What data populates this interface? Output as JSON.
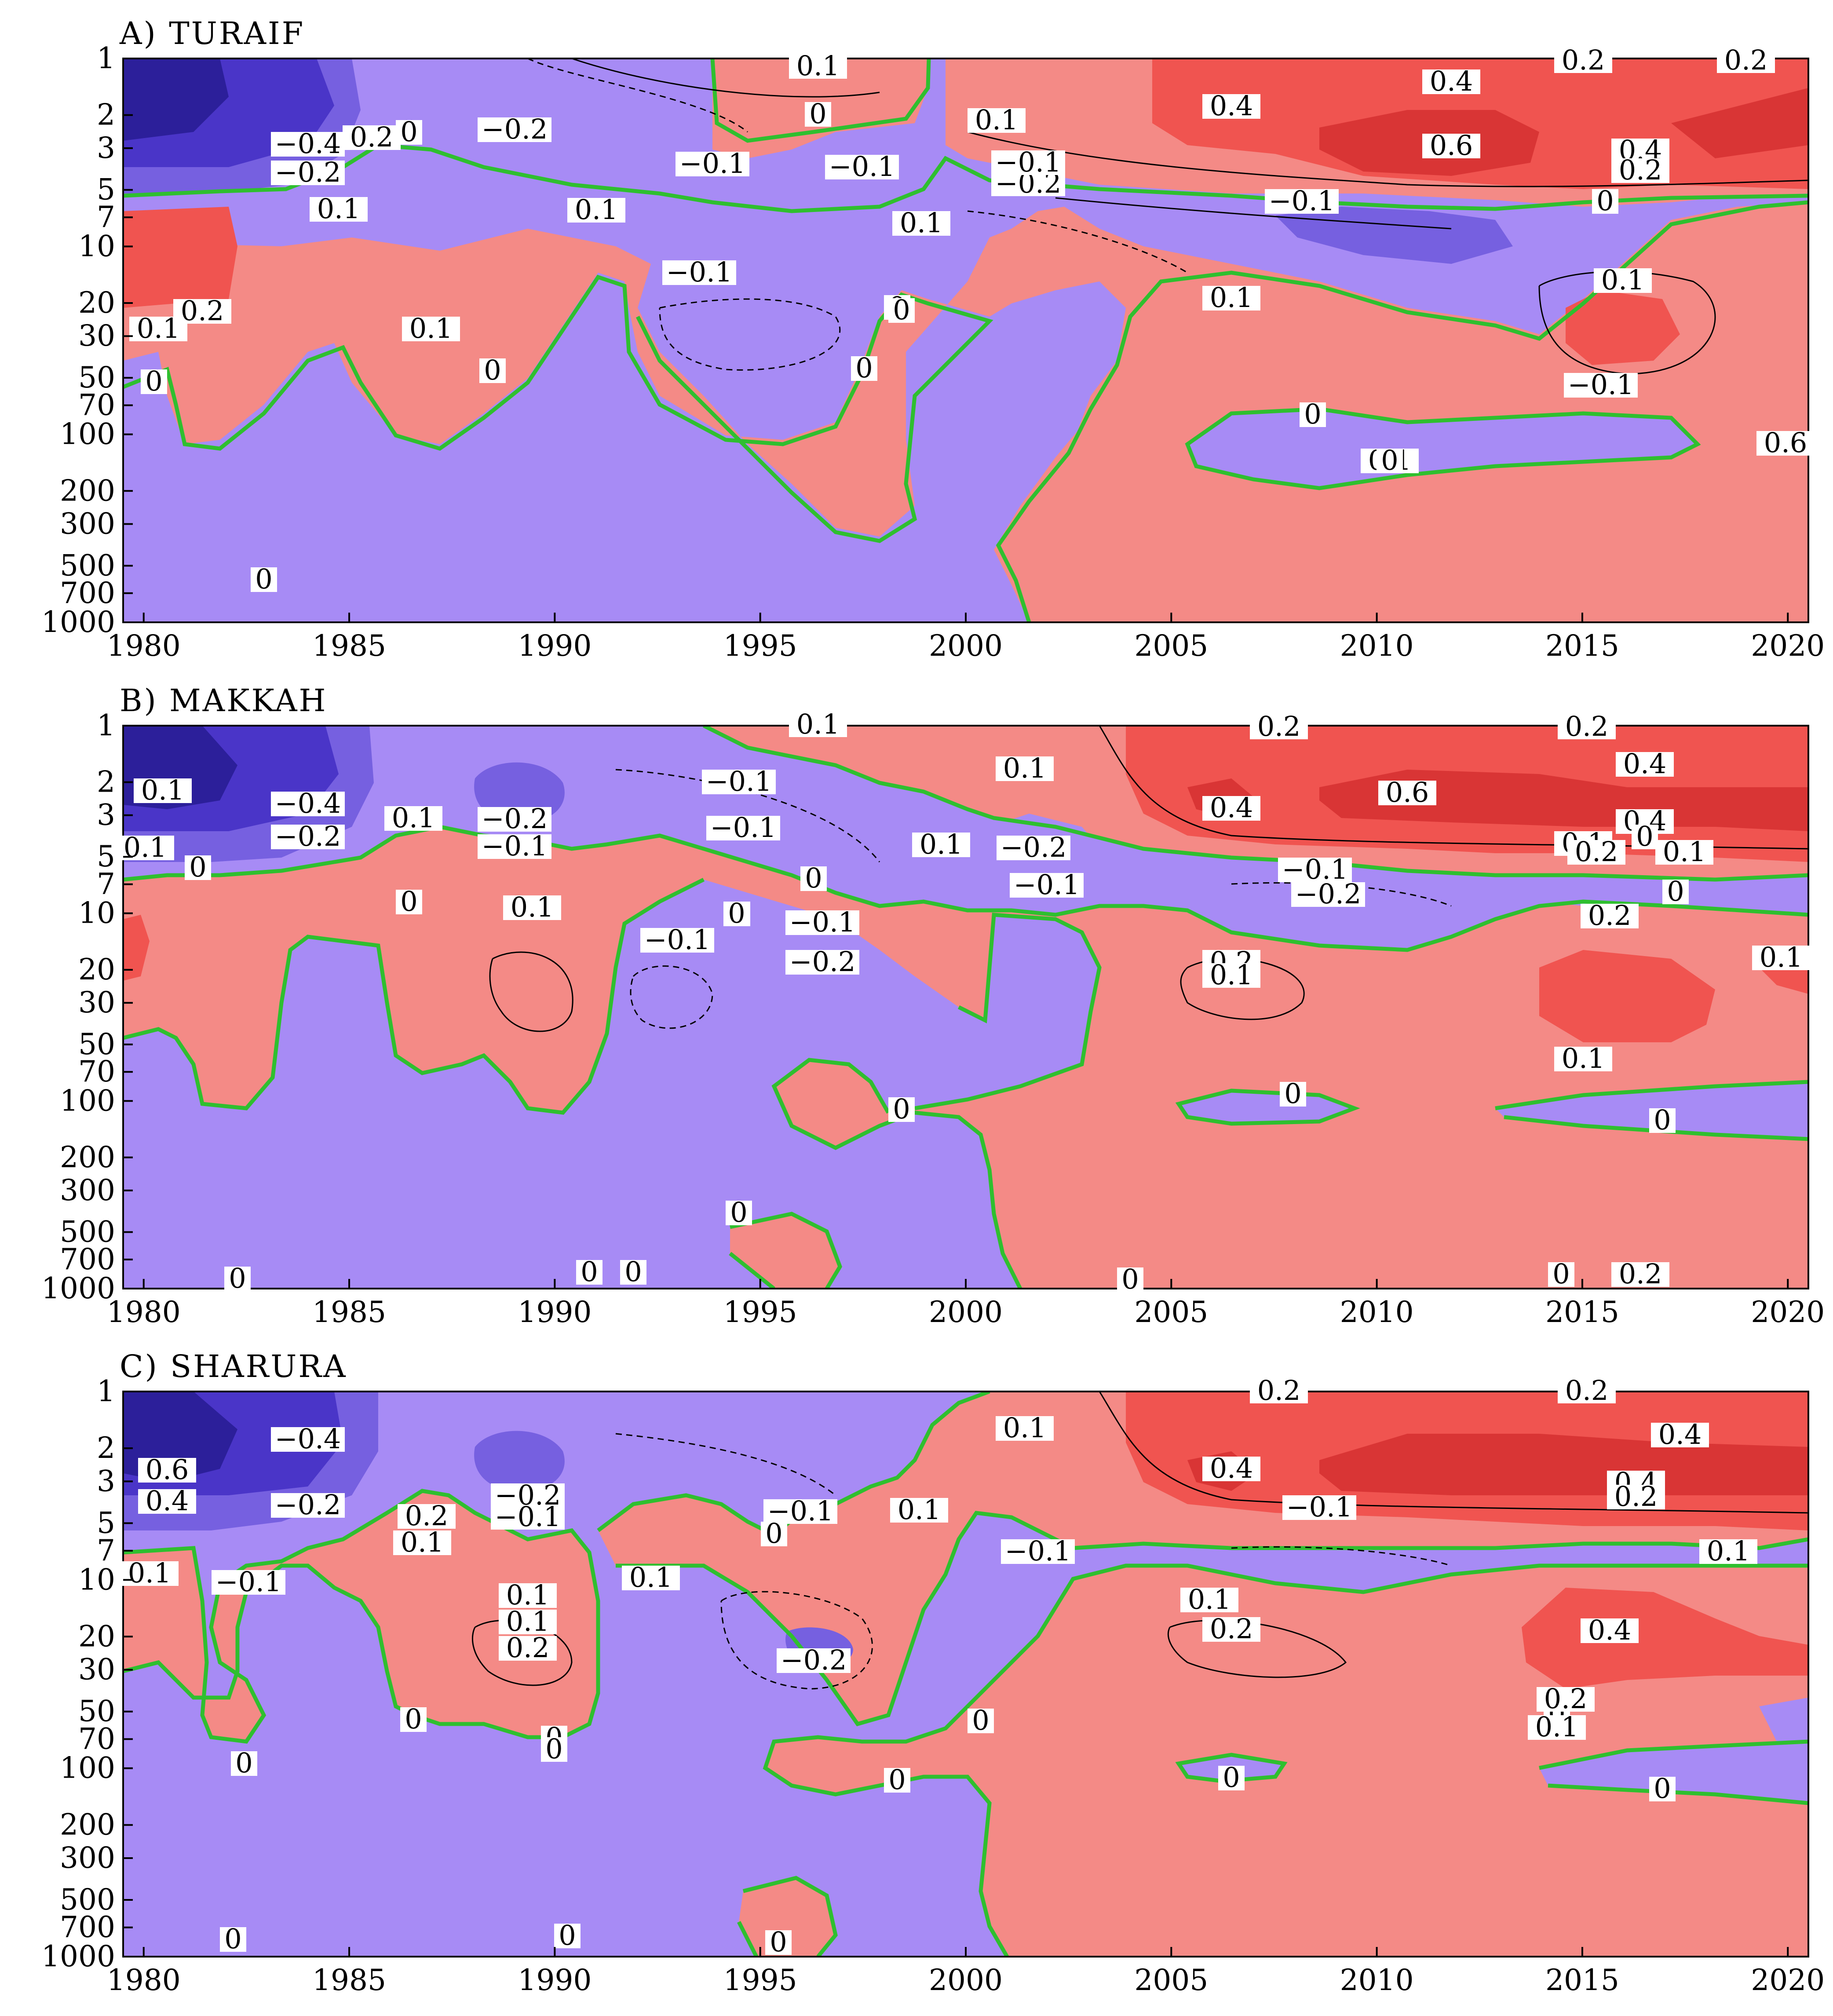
{
  "chart_data": [
    {
      "type": "contour",
      "title": "A) TURAIF",
      "xlabel": "",
      "ylabel": "",
      "xlim": [
        1979.5,
        2020.5
      ],
      "xticks": [
        1980,
        1985,
        1990,
        1995,
        2000,
        2005,
        2010,
        2015,
        2020
      ],
      "y_scale": "log",
      "ylim": [
        1000,
        1
      ],
      "yticks": [
        1,
        2,
        3,
        5,
        7,
        10,
        20,
        30,
        50,
        70,
        100,
        200,
        300,
        500,
        700,
        1000
      ],
      "colors": {
        "positive": "#f48a86",
        "positive_mid": "#f05450",
        "positive_high": "#d93535",
        "negative": "#a78bf5",
        "negative_mid": "#7660e0",
        "negative_high": "#4a35c8",
        "negative_max": "#2c1f9a",
        "zero_line": "#2fbf2f"
      },
      "regions": [
        {
          "sign": "positive",
          "level": 1,
          "x": [
            1979.5,
            2020.5
          ],
          "p": [
            5,
            70
          ]
        },
        {
          "sign": "positive",
          "level": 1,
          "x": [
            1981,
            1998
          ],
          "p": [
            70,
            300
          ]
        },
        {
          "sign": "positive",
          "level": 1,
          "x": [
            1994.2,
            2020.5
          ],
          "p": [
            1,
            6
          ]
        },
        {
          "sign": "positive",
          "level": 1,
          "x": [
            2002,
            2020.5
          ],
          "p": [
            12,
            1000
          ]
        },
        {
          "sign": "negative",
          "level": 1,
          "x": [
            1979.5,
            1995
          ],
          "p": [
            1,
            5
          ]
        },
        {
          "sign": "negative",
          "level": 1,
          "x": [
            1979.5,
            2002
          ],
          "p": [
            70,
            1000
          ]
        },
        {
          "sign": "negative",
          "level": 1,
          "x": [
            1991.5,
            1998.5
          ],
          "p": [
            10,
            100
          ]
        },
        {
          "sign": "negative",
          "level": 1,
          "x": [
            1998.5,
            2003
          ],
          "p": [
            5,
            1000
          ]
        },
        {
          "sign": "negative",
          "level": 1,
          "x": [
            2007,
            2017.5
          ],
          "p": [
            80,
            200
          ]
        },
        {
          "sign": "negative",
          "level": 1,
          "x": [
            2003,
            2015
          ],
          "p": [
            5,
            20
          ]
        },
        {
          "sign": "negative",
          "level": 1,
          "x": [
            2016,
            2020.5
          ],
          "p": [
            7,
            12
          ]
        },
        {
          "sign": "negative",
          "level": 2,
          "x": [
            1979.5,
            1985
          ],
          "p": [
            1,
            5
          ]
        },
        {
          "sign": "negative",
          "level": 3,
          "x": [
            1979.5,
            1984
          ],
          "p": [
            1,
            3.5
          ]
        },
        {
          "sign": "negative",
          "level": 4,
          "x": [
            1979.5,
            1981.5
          ],
          "p": [
            1,
            2.5
          ]
        },
        {
          "sign": "negative",
          "level": 2,
          "x": [
            2009,
            2014
          ],
          "p": [
            7,
            12
          ]
        },
        {
          "sign": "positive",
          "level": 2,
          "x": [
            2005.5,
            2020.5
          ],
          "p": [
            1,
            5
          ]
        },
        {
          "sign": "positive",
          "level": 3,
          "x": [
            2008.5,
            2014.5
          ],
          "p": [
            1.7,
            4.2
          ]
        },
        {
          "sign": "positive",
          "level": 2,
          "x": [
            2015,
            2018
          ],
          "p": [
            20,
            40
          ]
        },
        {
          "sign": "positive",
          "level": 2,
          "x": [
            1979.5,
            1982
          ],
          "p": [
            7,
            20
          ]
        }
      ],
      "contour_labels": [
        "0.1",
        "0",
        "0.1",
        "0.4",
        "0.2",
        "0.2",
        "0.6",
        "0.4",
        "0.4",
        "0.6",
        "0.4",
        "0.2",
        "-0.4",
        "-0.2",
        "0",
        "-0.2",
        "-0.1",
        "-0.1",
        "0.1",
        "-0.1",
        "-0.2",
        "-0.1",
        "-0.1",
        "0",
        "0.1",
        "0.1",
        "0.1",
        "0.2",
        "0.1",
        "0",
        "0.1",
        "-0.1",
        "0",
        "0.1",
        "0.2",
        "0.1",
        "0",
        "0",
        "0",
        "0",
        "0",
        "0",
        "0",
        "0.6"
      ]
    },
    {
      "type": "contour",
      "title": "B) MAKKAH",
      "xlabel": "",
      "ylabel": "",
      "xlim": [
        1979.5,
        2020.5
      ],
      "xticks": [
        1980,
        1985,
        1990,
        1995,
        2000,
        2005,
        2010,
        2015,
        2020
      ],
      "y_scale": "log",
      "ylim": [
        1000,
        1
      ],
      "yticks": [
        1,
        2,
        3,
        5,
        7,
        10,
        20,
        30,
        50,
        70,
        100,
        200,
        300,
        500,
        700,
        1000
      ],
      "colors": {
        "positive": "#f48a86",
        "positive_mid": "#f05450",
        "positive_high": "#d93535",
        "negative": "#a78bf5",
        "negative_mid": "#7660e0",
        "negative_high": "#4a35c8",
        "negative_max": "#2c1f9a",
        "zero_line": "#2fbf2f"
      },
      "regions": [
        {
          "sign": "positive",
          "level": 1,
          "x": [
            1979.5,
            2001
          ],
          "p": [
            7,
            120
          ]
        },
        {
          "sign": "positive",
          "level": 1,
          "x": [
            1994,
            2020.5
          ],
          "p": [
            1,
            7
          ]
        },
        {
          "sign": "positive",
          "level": 1,
          "x": [
            2000.5,
            2020.5
          ],
          "p": [
            10,
            1000
          ]
        },
        {
          "sign": "negative",
          "level": 1,
          "x": [
            1979.5,
            1995
          ],
          "p": [
            1,
            7
          ]
        },
        {
          "sign": "negative",
          "level": 1,
          "x": [
            1979.5,
            2001
          ],
          "p": [
            50,
            1000
          ]
        },
        {
          "sign": "negative",
          "level": 1,
          "x": [
            1992,
            2001.5
          ],
          "p": [
            10,
            100
          ]
        },
        {
          "sign": "negative",
          "level": 1,
          "x": [
            2000,
            2004
          ],
          "p": [
            3,
            10
          ]
        },
        {
          "sign": "negative",
          "level": 1,
          "x": [
            2005,
            2020.5
          ],
          "p": [
            6,
            12
          ]
        },
        {
          "sign": "negative",
          "level": 1,
          "x": [
            2016,
            2020.5
          ],
          "p": [
            100,
            200
          ]
        },
        {
          "sign": "negative",
          "level": 2,
          "x": [
            1979.5,
            1985
          ],
          "p": [
            1,
            5
          ]
        },
        {
          "sign": "negative",
          "level": 3,
          "x": [
            1979.5,
            1983.5
          ],
          "p": [
            1,
            3
          ]
        },
        {
          "sign": "negative",
          "level": 4,
          "x": [
            1979.5,
            1981.2
          ],
          "p": [
            1,
            2.2
          ]
        },
        {
          "sign": "negative",
          "level": 2,
          "x": [
            1988,
            1990
          ],
          "p": [
            1.7,
            3
          ]
        },
        {
          "sign": "positive",
          "level": 2,
          "x": [
            2005,
            2020.5
          ],
          "p": [
            1,
            5
          ]
        },
        {
          "sign": "positive",
          "level": 3,
          "x": [
            2008.5,
            2018
          ],
          "p": [
            2,
            4
          ]
        },
        {
          "sign": "positive",
          "level": 2,
          "x": [
            2014.5,
            2019
          ],
          "p": [
            17,
            45
          ]
        },
        {
          "sign": "positive",
          "level": 2,
          "x": [
            1979.5,
            1980.5
          ],
          "p": [
            10,
            25
          ]
        }
      ],
      "contour_labels": [
        "0.1",
        "0.2",
        "0.2",
        "0.1",
        "-0.1",
        "0.4",
        "0.6",
        "0.4",
        "0.6",
        "0.4",
        "0.4",
        "-0.4",
        "-0.2",
        "0.1",
        "-0.2",
        "-0.1",
        "0",
        "0.1",
        "0.1",
        "0.2",
        "0.1",
        "-0.1",
        "-0.2",
        "-0.1",
        "0.1",
        "0.2",
        "0.1",
        "-0.2",
        "-0.1",
        "0.1",
        "0",
        "0.1",
        "-0.1",
        "0",
        "-0.1",
        "-0.2",
        "0.2",
        "0",
        "0",
        "0",
        "0",
        "0",
        "0",
        "0",
        "0",
        "0",
        "0",
        "0",
        "0.2",
        "0.1",
        "0.1",
        "0",
        "0"
      ]
    },
    {
      "type": "contour",
      "title": "C) SHARURA",
      "xlabel": "",
      "ylabel": "",
      "xlim": [
        1979.5,
        2020.5
      ],
      "xticks": [
        1980,
        1985,
        1990,
        1995,
        2000,
        2005,
        2010,
        2015,
        2020
      ],
      "y_scale": "log",
      "ylim": [
        1000,
        1
      ],
      "yticks": [
        1,
        2,
        3,
        5,
        7,
        10,
        20,
        30,
        50,
        70,
        100,
        200,
        300,
        500,
        700,
        1000
      ],
      "colors": {
        "positive": "#f48a86",
        "positive_mid": "#f05450",
        "positive_high": "#d93535",
        "negative": "#a78bf5",
        "negative_mid": "#7660e0",
        "negative_high": "#4a35c8",
        "negative_max": "#2c1f9a",
        "zero_line": "#2fbf2f"
      },
      "regions": [
        {
          "sign": "positive",
          "level": 1,
          "x": [
            1979.5,
            1981.5
          ],
          "p": [
            7,
            50
          ]
        },
        {
          "sign": "positive",
          "level": 1,
          "x": [
            1984.5,
            1991.5
          ],
          "p": [
            5,
            100
          ]
        },
        {
          "sign": "positive",
          "level": 1,
          "x": [
            1990.5,
            2001
          ],
          "p": [
            3,
            70
          ]
        },
        {
          "sign": "positive",
          "level": 1,
          "x": [
            1994.5,
            2020.5
          ],
          "p": [
            1,
            6
          ]
        },
        {
          "sign": "positive",
          "level": 1,
          "x": [
            2000.5,
            2020.5
          ],
          "p": [
            10,
            1000
          ]
        },
        {
          "sign": "negative",
          "level": 1,
          "x": [
            1979.5,
            1995
          ],
          "p": [
            1,
            7
          ]
        },
        {
          "sign": "negative",
          "level": 1,
          "x": [
            1979.5,
            2001
          ],
          "p": [
            50,
            1000
          ]
        },
        {
          "sign": "negative",
          "level": 1,
          "x": [
            1981.5,
            1985
          ],
          "p": [
            7,
            100
          ]
        },
        {
          "sign": "negative",
          "level": 1,
          "x": [
            1991.5,
            1999
          ],
          "p": [
            10,
            100
          ]
        },
        {
          "sign": "negative",
          "level": 1,
          "x": [
            2000,
            2003.5
          ],
          "p": [
            3,
            50
          ]
        },
        {
          "sign": "negative",
          "level": 1,
          "x": [
            2005,
            2020.5
          ],
          "p": [
            6,
            10
          ]
        },
        {
          "sign": "negative",
          "level": 1,
          "x": [
            2018.5,
            2020.5
          ],
          "p": [
            50,
            150
          ]
        },
        {
          "sign": "negative",
          "level": 2,
          "x": [
            1979.5,
            1984.5
          ],
          "p": [
            1,
            5
          ]
        },
        {
          "sign": "negative",
          "level": 3,
          "x": [
            1979.5,
            1983.5
          ],
          "p": [
            1,
            3
          ]
        },
        {
          "sign": "negative",
          "level": 4,
          "x": [
            1979.5,
            1981
          ],
          "p": [
            1,
            2.2
          ]
        },
        {
          "sign": "negative",
          "level": 2,
          "x": [
            1988,
            1990
          ],
          "p": [
            1.6,
            2.8
          ]
        },
        {
          "sign": "negative",
          "level": 2,
          "x": [
            1996,
            1997.5
          ],
          "p": [
            20,
            28
          ]
        },
        {
          "sign": "positive",
          "level": 2,
          "x": [
            2005,
            2020.5
          ],
          "p": [
            1,
            5
          ]
        },
        {
          "sign": "positive",
          "level": 3,
          "x": [
            2009,
            2020.5
          ],
          "p": [
            1.7,
            3.8
          ]
        },
        {
          "sign": "positive",
          "level": 2,
          "x": [
            2014,
            2020.5
          ],
          "p": [
            12,
            45
          ]
        }
      ],
      "contour_labels": [
        "0.2",
        "0.2",
        "0.1",
        "0.4",
        "-0.4",
        "0.6",
        "0.4",
        "0.4",
        "0.4",
        "0.2",
        "-0.2",
        "0.2",
        "-0.2",
        "-0.1",
        "-0.1",
        "0.1",
        "0.1",
        "0.1",
        "0",
        "-0.1",
        "0.1",
        "-0.1",
        "-0.1",
        "0.1",
        "0.1",
        "0.2",
        "0.1",
        "0.2",
        "0.4",
        "-0.2",
        "0",
        "0",
        "0",
        "0",
        "0",
        "0",
        "0",
        "0",
        "0",
        "0.2",
        "0.1",
        "0.1",
        "0",
        "0",
        "0"
      ]
    }
  ]
}
